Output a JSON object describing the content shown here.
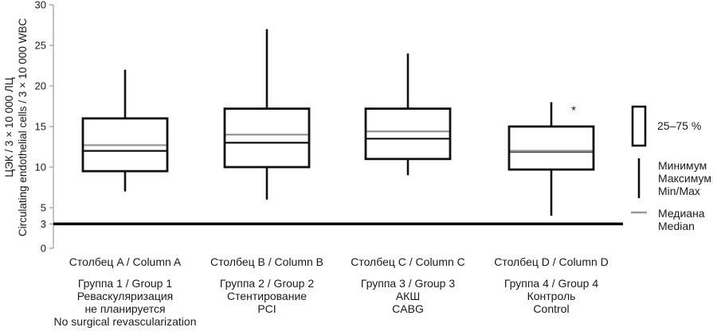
{
  "chart_data": {
    "type": "box",
    "ylabel_lines": [
      "ЦЭК / 3 × 10 000 ЛЦ",
      "Circulating endothelial cells / 3 × 10 000 WBC"
    ],
    "ylim": [
      0,
      30
    ],
    "y_ticks": [
      0,
      3,
      5,
      10,
      15,
      20,
      25,
      30
    ],
    "grid": false,
    "reference_line": 3,
    "categories": [
      "Столбец A / Column A",
      "Столбец B / Column B",
      "Столбец C / Column C",
      "Столбец D / Column D"
    ],
    "group_labels": [
      [
        "Группа 1 / Group 1",
        "Реваскуляризация",
        "не планируется",
        "No surgical revascularization"
      ],
      [
        "Группа 2 / Group 2",
        "Стентирование",
        "PCI"
      ],
      [
        "Группа 3 / Group 3",
        "АКШ",
        "CABG"
      ],
      [
        "Группа 4 / Group 4",
        "Контроль",
        "Control"
      ]
    ],
    "boxes": [
      {
        "min": 7,
        "q1": 9.5,
        "median": 12.7,
        "q3": 16,
        "max": 22,
        "line": 12
      },
      {
        "min": 6,
        "q1": 10,
        "median": 14,
        "q3": 17.2,
        "max": 27,
        "line": 13
      },
      {
        "min": 9,
        "q1": 11,
        "median": 14.4,
        "q3": 17.2,
        "max": 24,
        "line": 13.5
      },
      {
        "min": 4,
        "q1": 9.7,
        "median": 12,
        "q3": 15,
        "max": 18,
        "line": 11.9,
        "outlier": 17.7,
        "outlier_symbol": "*"
      }
    ],
    "legend": {
      "placement": "right",
      "box_label": "25–75 %",
      "whisker_labels": [
        "Минимум",
        "Максимум",
        "Min/Max"
      ],
      "median_labels": [
        "Медиана",
        "Median"
      ]
    },
    "colors": {
      "box": "#111111",
      "median": "#9a9a9a",
      "axis": "#888888"
    }
  }
}
